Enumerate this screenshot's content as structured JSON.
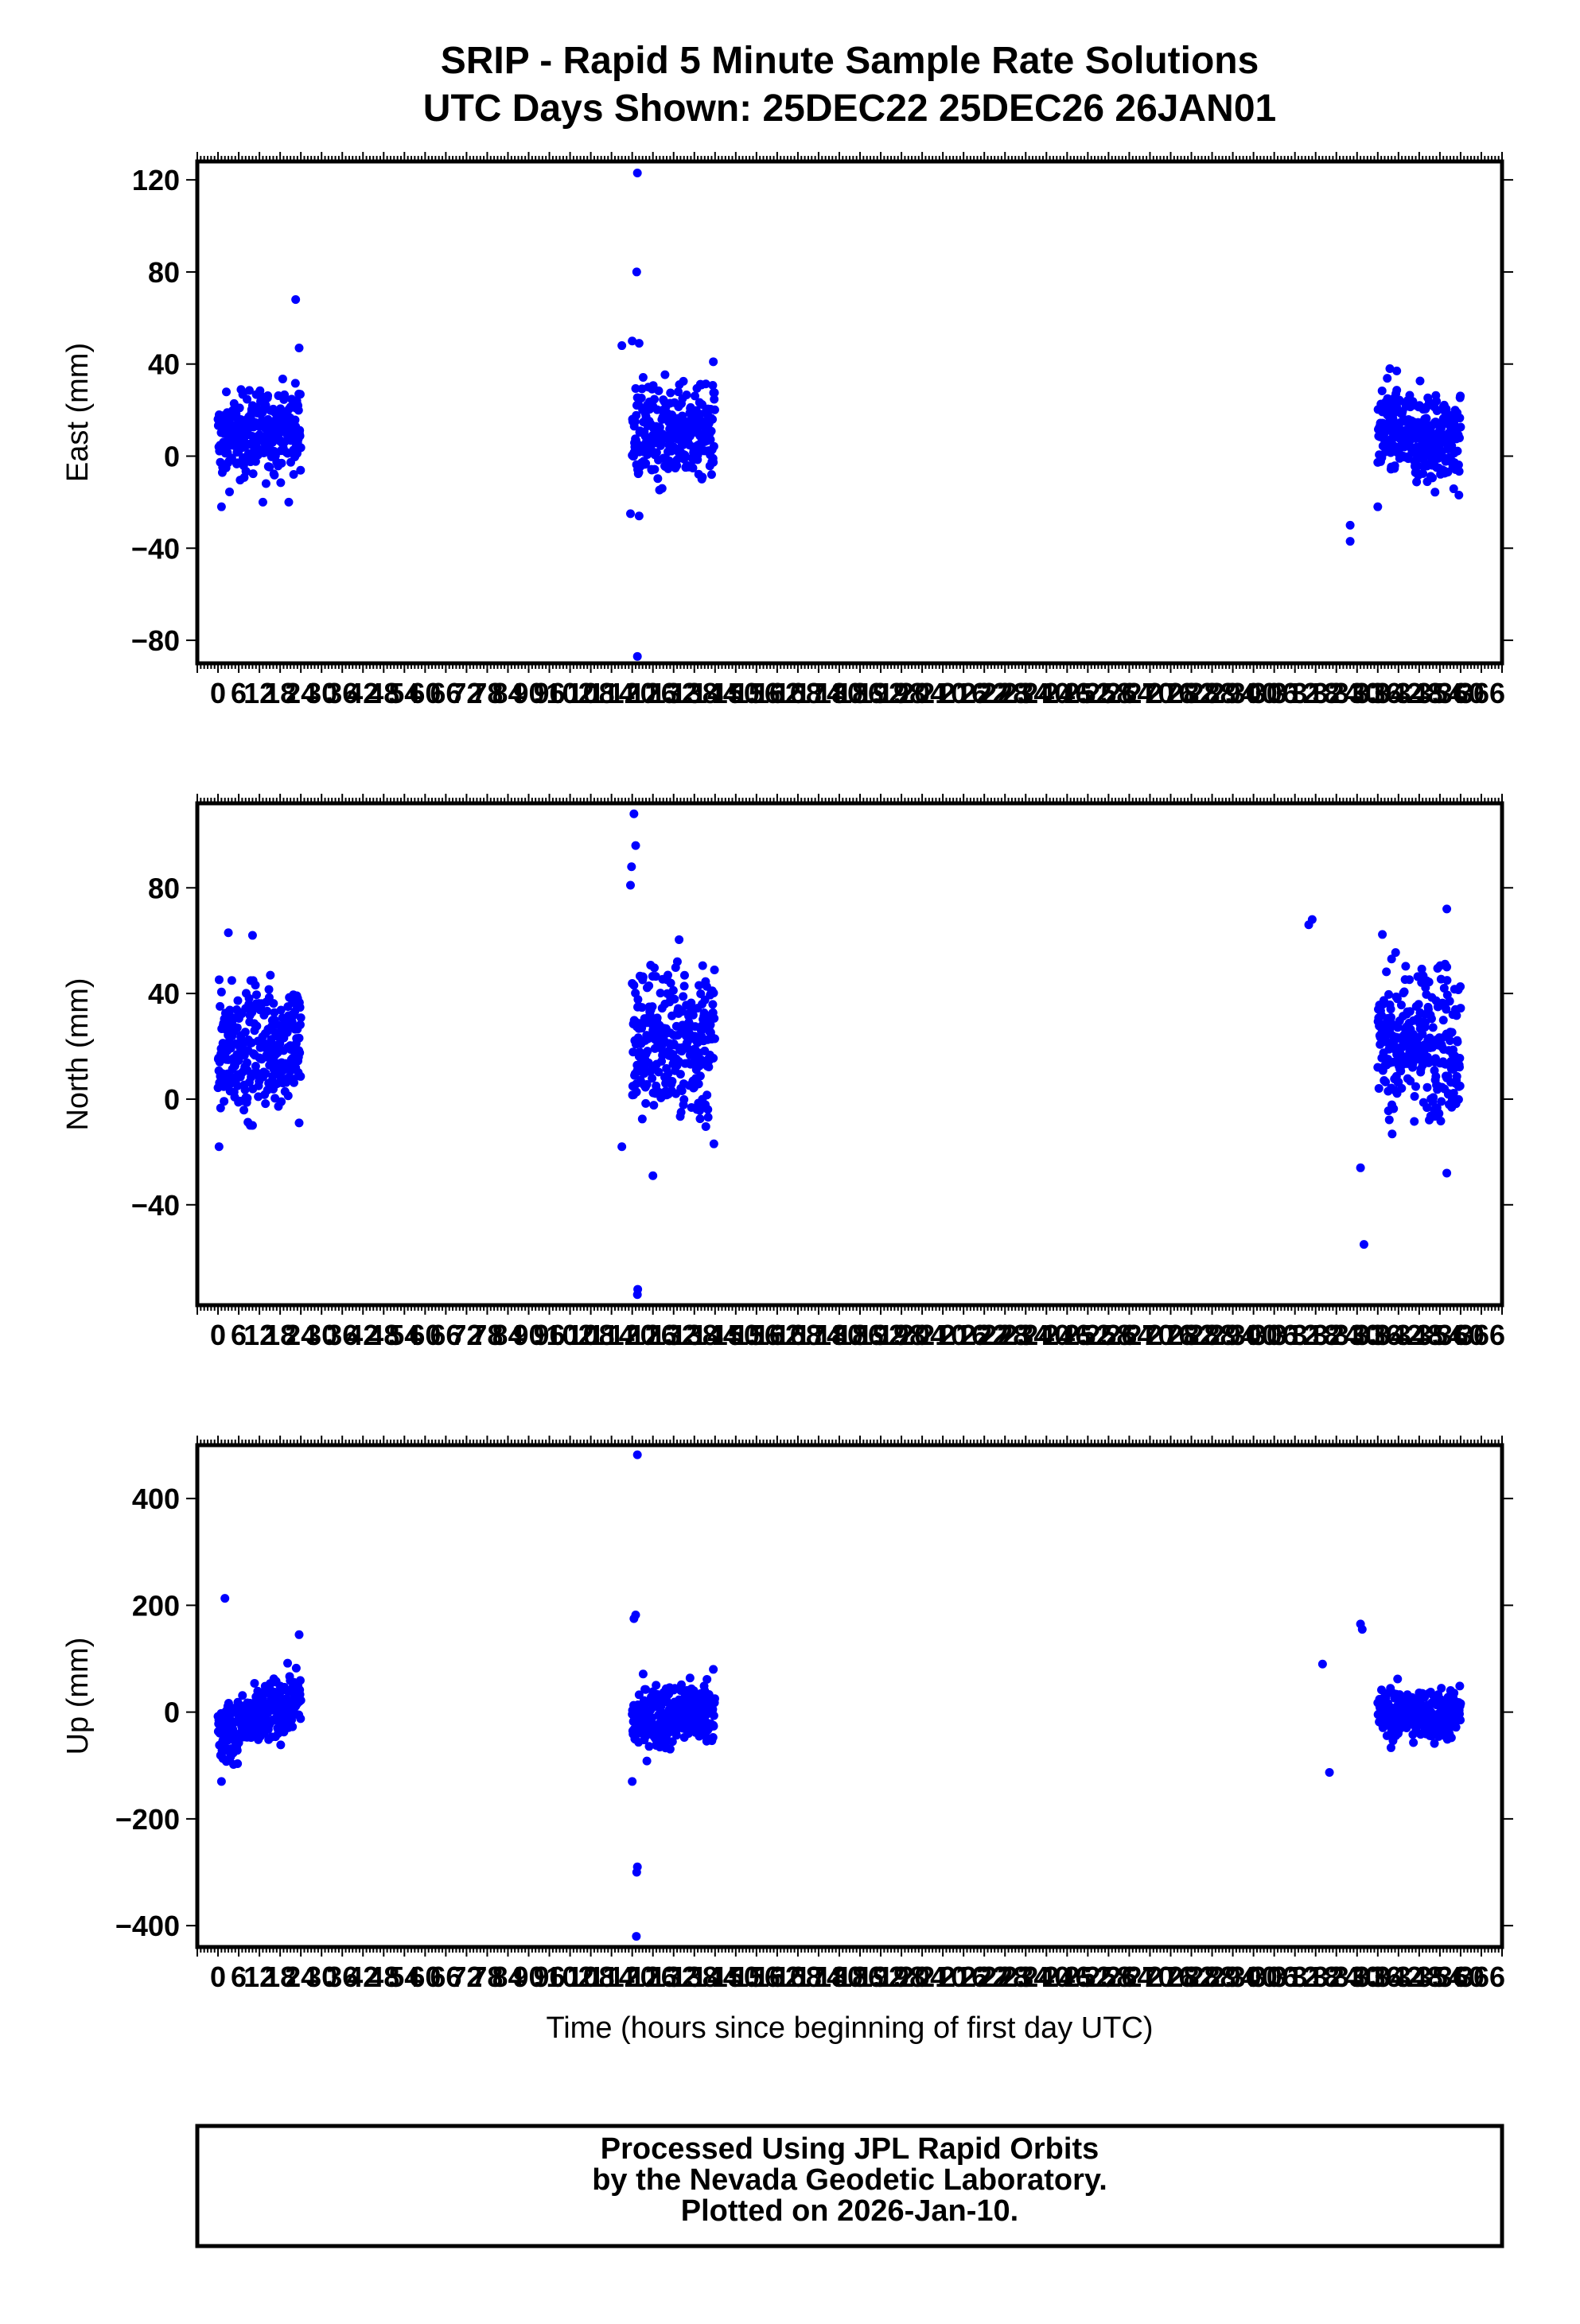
{
  "title": {
    "line1": "SRIP - Rapid 5 Minute Sample Rate Solutions",
    "line2": "UTC Days Shown:  25DEC22 25DEC26 26JAN01"
  },
  "colors": {
    "points": "#0000ff",
    "axis": "#000000",
    "background": "#ffffff"
  },
  "xaxis": {
    "label": "Time (hours since beginning of first day UTC)",
    "range": [
      -6,
      372
    ],
    "tick_values": [
      0,
      6,
      12,
      18,
      24,
      30,
      36,
      42,
      48,
      54,
      60,
      66,
      72,
      78,
      84,
      90,
      96,
      102,
      108,
      114,
      120,
      126,
      132,
      138,
      144,
      150,
      156,
      162,
      168,
      174,
      180,
      186,
      192,
      198,
      204,
      210,
      216,
      222,
      228,
      234,
      240,
      246,
      252,
      258,
      264,
      270,
      276,
      282,
      288,
      294,
      300,
      306,
      312,
      318,
      324,
      330,
      336,
      342,
      348,
      354,
      360,
      366
    ]
  },
  "footer": {
    "line1": "Processed Using JPL Rapid Orbits",
    "line2": "by the Nevada Geodetic Laboratory.",
    "line3": "Plotted on 2026-Jan-10."
  },
  "chart_data": [
    {
      "type": "scatter",
      "ylabel": "East (mm)",
      "ylim": [
        -90,
        128
      ],
      "yticks": [
        120,
        80,
        40,
        0,
        -40,
        -80
      ],
      "grid": false,
      "clusters": [
        {
          "x_range": [
            0,
            24
          ],
          "center": 10,
          "spread": 9,
          "trend": 6
        },
        {
          "x_range": [
            120,
            144
          ],
          "center": 10,
          "spread": 10,
          "trend": 0
        },
        {
          "x_range": [
            336,
            360
          ],
          "center": 8,
          "spread": 10,
          "trend": -4
        }
      ],
      "outliers": [
        {
          "x": 22.5,
          "y": 68
        },
        {
          "x": 23.5,
          "y": 47
        },
        {
          "x": 13,
          "y": -20
        },
        {
          "x": 20.5,
          "y": -20
        },
        {
          "x": 1,
          "y": -22
        },
        {
          "x": 121.5,
          "y": 123
        },
        {
          "x": 121.3,
          "y": 80
        },
        {
          "x": 121.5,
          "y": -87
        },
        {
          "x": 120,
          "y": 50
        },
        {
          "x": 122,
          "y": 49
        },
        {
          "x": 117,
          "y": 48
        },
        {
          "x": 119.5,
          "y": -25
        },
        {
          "x": 122,
          "y": -26
        },
        {
          "x": 143.5,
          "y": 41
        },
        {
          "x": 328,
          "y": -37
        },
        {
          "x": 339.5,
          "y": 38
        },
        {
          "x": 341.5,
          "y": 37
        },
        {
          "x": 328,
          "y": -30
        },
        {
          "x": 336,
          "y": -22
        }
      ]
    },
    {
      "type": "scatter",
      "ylabel": "North (mm)",
      "ylim": [
        -78,
        112
      ],
      "yticks": [
        80,
        40,
        0,
        -40
      ],
      "grid": false,
      "clusters": [
        {
          "x_range": [
            0,
            24
          ],
          "center": 20,
          "spread": 12,
          "trend": 4
        },
        {
          "x_range": [
            120,
            144
          ],
          "center": 22,
          "spread": 15,
          "trend": 0
        },
        {
          "x_range": [
            336,
            360
          ],
          "center": 22,
          "spread": 14,
          "trend": 0
        }
      ],
      "outliers": [
        {
          "x": 0.3,
          "y": -18
        },
        {
          "x": 3,
          "y": 63
        },
        {
          "x": 10,
          "y": 62
        },
        {
          "x": 23.5,
          "y": -9
        },
        {
          "x": 120.5,
          "y": 108
        },
        {
          "x": 121,
          "y": 96
        },
        {
          "x": 119.8,
          "y": 88
        },
        {
          "x": 119.5,
          "y": 81
        },
        {
          "x": 121.5,
          "y": -74
        },
        {
          "x": 121.6,
          "y": -72
        },
        {
          "x": 117,
          "y": -18
        },
        {
          "x": 126,
          "y": -29
        },
        {
          "x": 317,
          "y": 68
        },
        {
          "x": 316,
          "y": 66
        },
        {
          "x": 332,
          "y": -55
        },
        {
          "x": 331,
          "y": -26
        },
        {
          "x": 356,
          "y": 72
        },
        {
          "x": 356,
          "y": -28
        },
        {
          "x": 356,
          "y": 50
        }
      ]
    },
    {
      "type": "scatter",
      "ylabel": "Up (mm)",
      "ylim": [
        -440,
        500
      ],
      "yticks": [
        400,
        200,
        0,
        -200,
        -400
      ],
      "grid": false,
      "clusters": [
        {
          "x_range": [
            0,
            24
          ],
          "center": -10,
          "spread": 28,
          "trend": 70
        },
        {
          "x_range": [
            120,
            144
          ],
          "center": -5,
          "spread": 30,
          "trend": 20
        },
        {
          "x_range": [
            336,
            360
          ],
          "center": -5,
          "spread": 25,
          "trend": 0
        }
      ],
      "outliers": [
        {
          "x": 2,
          "y": 213
        },
        {
          "x": 1,
          "y": -130
        },
        {
          "x": 23.5,
          "y": 145
        },
        {
          "x": 121.5,
          "y": 482
        },
        {
          "x": 121,
          "y": 182
        },
        {
          "x": 120.5,
          "y": 175
        },
        {
          "x": 121.5,
          "y": -290
        },
        {
          "x": 121.3,
          "y": -300
        },
        {
          "x": 121.2,
          "y": -420
        },
        {
          "x": 120,
          "y": -130
        },
        {
          "x": 143.5,
          "y": 80
        },
        {
          "x": 331,
          "y": 165
        },
        {
          "x": 331.5,
          "y": 155
        },
        {
          "x": 322,
          "y": -113
        },
        {
          "x": 320,
          "y": 90
        }
      ]
    }
  ]
}
